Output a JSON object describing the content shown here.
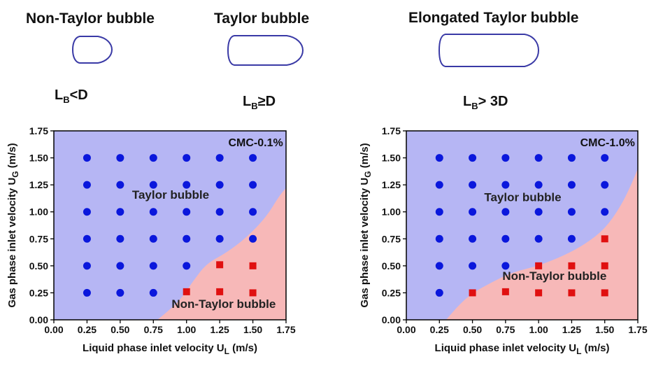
{
  "header": {
    "bubbles": [
      {
        "title": "Non-Taylor bubble",
        "sym": "L",
        "sub": "B",
        "rel": "<D"
      },
      {
        "title": "Taylor bubble",
        "sym": "L",
        "sub": "B",
        "rel": "≥D"
      },
      {
        "title": "Elongated Taylor bubble",
        "sym": "L",
        "sub": "B",
        "rel": "> 3D"
      }
    ]
  },
  "colors": {
    "taylor_region": "#b6b6f4",
    "non_taylor_region": "#f7b8b8",
    "taylor_marker": "#0a17dc",
    "non_taylor_marker": "#e01010",
    "bubble_outline": "#3a3aa6"
  },
  "chart_data": [
    {
      "type": "scatter",
      "annotation": "CMC-0.1%",
      "xlabel": "Liquid phase inlet velocity U_L (m/s)",
      "ylabel": "Gas phase inlet velocity U_G (m/s)",
      "xlim": [
        0,
        1.75
      ],
      "ylim": [
        0,
        1.75
      ],
      "xticks": [
        "0.00",
        "0.25",
        "0.50",
        "0.75",
        "1.00",
        "1.25",
        "1.50",
        "1.75"
      ],
      "yticks": [
        "0.00",
        "0.25",
        "0.50",
        "0.75",
        "1.00",
        "1.25",
        "1.50",
        "1.75"
      ],
      "grid": false,
      "regions": [
        {
          "name": "Taylor bubble",
          "label_at": [
            0.88,
            1.12
          ]
        },
        {
          "name": "Non-Taylor bubble",
          "label_at": [
            1.28,
            0.11
          ]
        }
      ],
      "boundary": [
        [
          0.78,
          0
        ],
        [
          0.85,
          0.07
        ],
        [
          0.95,
          0.18
        ],
        [
          1.05,
          0.36
        ],
        [
          1.15,
          0.52
        ],
        [
          1.3,
          0.62
        ],
        [
          1.45,
          0.76
        ],
        [
          1.6,
          0.95
        ],
        [
          1.7,
          1.15
        ],
        [
          1.75,
          1.22
        ]
      ],
      "series": [
        {
          "name": "Taylor bubble",
          "marker": "circle",
          "points": [
            [
              0.25,
              1.5
            ],
            [
              0.5,
              1.5
            ],
            [
              0.75,
              1.5
            ],
            [
              1.0,
              1.5
            ],
            [
              1.25,
              1.5
            ],
            [
              1.5,
              1.5
            ],
            [
              0.25,
              1.25
            ],
            [
              0.5,
              1.25
            ],
            [
              0.75,
              1.25
            ],
            [
              1.0,
              1.25
            ],
            [
              1.25,
              1.25
            ],
            [
              1.5,
              1.25
            ],
            [
              0.25,
              1.0
            ],
            [
              0.5,
              1.0
            ],
            [
              0.75,
              1.0
            ],
            [
              1.0,
              1.0
            ],
            [
              1.25,
              1.0
            ],
            [
              1.5,
              1.0
            ],
            [
              0.25,
              0.75
            ],
            [
              0.5,
              0.75
            ],
            [
              0.75,
              0.75
            ],
            [
              1.0,
              0.75
            ],
            [
              1.25,
              0.75
            ],
            [
              1.5,
              0.75
            ],
            [
              0.25,
              0.5
            ],
            [
              0.5,
              0.5
            ],
            [
              0.75,
              0.5
            ],
            [
              1.0,
              0.5
            ],
            [
              0.25,
              0.25
            ],
            [
              0.5,
              0.25
            ],
            [
              0.75,
              0.25
            ]
          ]
        },
        {
          "name": "Non-Taylor bubble",
          "marker": "square",
          "points": [
            [
              1.25,
              0.51
            ],
            [
              1.5,
              0.5
            ],
            [
              1.0,
              0.26
            ],
            [
              1.25,
              0.26
            ],
            [
              1.5,
              0.25
            ]
          ]
        }
      ]
    },
    {
      "type": "scatter",
      "annotation": "CMC-1.0%",
      "xlabel": "Liquid phase inlet velocity U_L (m/s)",
      "ylabel": "Gas phase inlet velocity U_G (m/s)",
      "xlim": [
        0,
        1.75
      ],
      "ylim": [
        0,
        1.75
      ],
      "xticks": [
        "0.00",
        "0.25",
        "0.50",
        "0.75",
        "1.00",
        "1.25",
        "1.50",
        "1.75"
      ],
      "yticks": [
        "0.00",
        "0.25",
        "0.50",
        "0.75",
        "1.00",
        "1.25",
        "1.50",
        "1.75"
      ],
      "grid": false,
      "regions": [
        {
          "name": "Taylor bubble",
          "label_at": [
            0.88,
            1.1
          ]
        },
        {
          "name": "Non-Taylor bubble",
          "label_at": [
            1.12,
            0.37
          ]
        }
      ],
      "boundary": [
        [
          0.3,
          0
        ],
        [
          0.4,
          0.14
        ],
        [
          0.5,
          0.25
        ],
        [
          0.65,
          0.35
        ],
        [
          0.8,
          0.44
        ],
        [
          1.0,
          0.5
        ],
        [
          1.2,
          0.6
        ],
        [
          1.35,
          0.7
        ],
        [
          1.5,
          0.84
        ],
        [
          1.62,
          1.05
        ],
        [
          1.7,
          1.25
        ],
        [
          1.75,
          1.4
        ]
      ],
      "series": [
        {
          "name": "Taylor bubble",
          "marker": "circle",
          "points": [
            [
              0.25,
              1.5
            ],
            [
              0.5,
              1.5
            ],
            [
              0.75,
              1.5
            ],
            [
              1.0,
              1.5
            ],
            [
              1.25,
              1.5
            ],
            [
              1.5,
              1.5
            ],
            [
              0.25,
              1.25
            ],
            [
              0.5,
              1.25
            ],
            [
              0.75,
              1.25
            ],
            [
              1.0,
              1.25
            ],
            [
              1.25,
              1.25
            ],
            [
              1.5,
              1.25
            ],
            [
              0.25,
              1.0
            ],
            [
              0.5,
              1.0
            ],
            [
              0.75,
              1.0
            ],
            [
              1.0,
              1.0
            ],
            [
              1.25,
              1.0
            ],
            [
              1.5,
              1.0
            ],
            [
              0.25,
              0.75
            ],
            [
              0.5,
              0.75
            ],
            [
              0.75,
              0.75
            ],
            [
              1.0,
              0.75
            ],
            [
              1.25,
              0.75
            ],
            [
              0.25,
              0.5
            ],
            [
              0.5,
              0.5
            ],
            [
              0.75,
              0.5
            ],
            [
              0.25,
              0.25
            ]
          ]
        },
        {
          "name": "Non-Taylor bubble",
          "marker": "square",
          "points": [
            [
              1.5,
              0.75
            ],
            [
              1.0,
              0.5
            ],
            [
              1.25,
              0.5
            ],
            [
              1.5,
              0.5
            ],
            [
              0.5,
              0.25
            ],
            [
              0.75,
              0.26
            ],
            [
              1.0,
              0.25
            ],
            [
              1.25,
              0.25
            ],
            [
              1.5,
              0.25
            ]
          ]
        }
      ]
    }
  ]
}
